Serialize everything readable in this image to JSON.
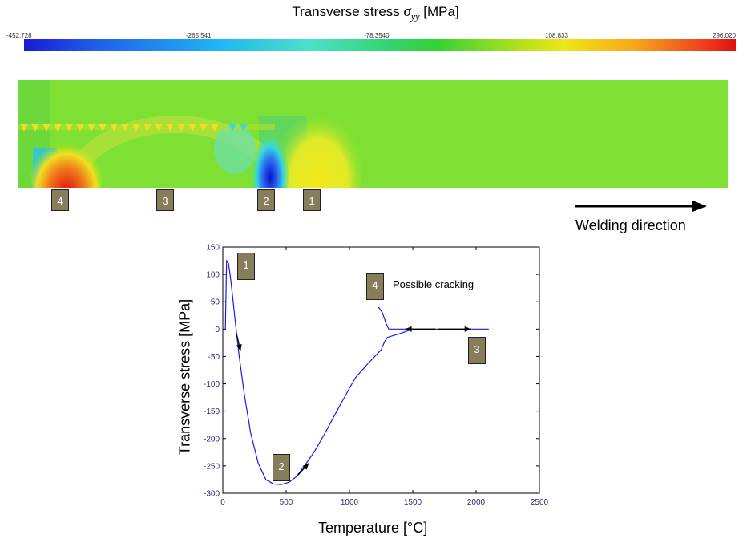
{
  "colorbar": {
    "title": "Transverse stress",
    "title_symbol": "σ",
    "title_subscript": "yy",
    "title_unit": "[MPa]",
    "ticks": [
      "-452.728",
      "-265.541",
      "-78.3540",
      "108.833",
      "296.020"
    ]
  },
  "markers": {
    "m1": "1",
    "m2": "2",
    "m3": "3",
    "m4": "4"
  },
  "welding_direction": "Welding direction",
  "annotation": {
    "number": "4",
    "text": "Possible cracking"
  },
  "colors": {
    "curve": "#1a1ae6",
    "marker_box": "#877d5a",
    "axis_tick": "#2a2a7a"
  },
  "chart_data": {
    "type": "line",
    "xlabel": "Temperature [°C]",
    "ylabel": "Transverse stress [MPa]",
    "xlim": [
      0,
      2500
    ],
    "ylim": [
      -300,
      150
    ],
    "xticks": [
      "0",
      "500",
      "1000",
      "1500",
      "2000",
      "2500"
    ],
    "yticks": [
      "150",
      "100",
      "50",
      "0",
      "-50",
      "-100",
      "-150",
      "-200",
      "-250",
      "-300"
    ],
    "series": [
      {
        "x": [
          20,
          30,
          45,
          60,
          80,
          100,
          130,
          170,
          220,
          280,
          340,
          400,
          460,
          520,
          580,
          650,
          720,
          800,
          900,
          1000,
          1050,
          1100,
          1150,
          1200,
          1250,
          1280,
          1300,
          1400,
          1500,
          2000,
          2100
        ],
        "y": [
          0,
          125,
          120,
          95,
          55,
          10,
          -50,
          -120,
          -190,
          -245,
          -275,
          -283,
          -284,
          -280,
          -270,
          -248,
          -225,
          -193,
          -150,
          -108,
          -88,
          -75,
          -62,
          -50,
          -38,
          -22,
          -15,
          -8,
          0,
          0,
          0
        ]
      },
      {
        "x": [
          1230,
          1260,
          1290,
          1310,
          1330,
          1400,
          1500
        ],
        "y": [
          40,
          30,
          10,
          0,
          0,
          0,
          0
        ]
      }
    ],
    "arrows": [
      {
        "x": [
          110,
          140
        ],
        "y": [
          -10,
          -40
        ]
      },
      {
        "x": [
          580,
          680
        ],
        "y": [
          -270,
          -245
        ]
      },
      {
        "x": [
          1680,
          1440
        ],
        "y": [
          0,
          0
        ]
      },
      {
        "x": [
          1700,
          1960
        ],
        "y": [
          0,
          0
        ]
      }
    ]
  }
}
